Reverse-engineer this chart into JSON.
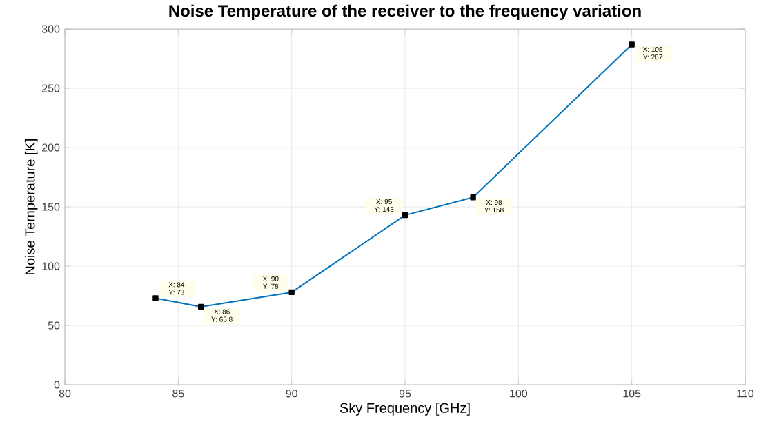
{
  "chart_data": {
    "type": "line",
    "title": "Noise Temperature of the receiver to the frequency variation",
    "xlabel": "Sky Frequency [GHz]",
    "ylabel": "Noise Temperature [K]",
    "x": [
      84,
      86,
      90,
      95,
      98,
      105
    ],
    "series": [
      {
        "color": "#0072bd",
        "values": [
          73,
          65.8,
          78,
          143,
          158,
          287
        ]
      }
    ],
    "marker": "square",
    "grid": true,
    "xlim": [
      80,
      110
    ],
    "xticks": [
      80,
      85,
      90,
      95,
      100,
      105,
      110
    ],
    "ylim": [
      0,
      300
    ],
    "yticks": [
      0,
      50,
      100,
      150,
      200,
      250,
      300
    ],
    "annotations": [
      {
        "text": "X: 84",
        "x": 84,
        "y": 73
      },
      {
        "text": "Y: 73",
        "x": 84,
        "y": 73
      },
      {
        "text": "X: 86",
        "x": 86,
        "y": 65.8
      },
      {
        "text": "Y: 65.8",
        "x": 86,
        "y": 65.8
      },
      {
        "text": "X: 90",
        "x": 90,
        "y": 78
      },
      {
        "text": "Y: 78",
        "x": 90,
        "y": 78
      },
      {
        "text": "X: 95",
        "x": 95,
        "y": 143
      },
      {
        "text": "Y: 143",
        "x": 95,
        "y": 143
      },
      {
        "text": "X: 98",
        "x": 98,
        "y": 158
      },
      {
        "text": "Y: 158",
        "x": 98,
        "y": 158
      },
      {
        "text": "X: 105",
        "x": 105,
        "y": 287
      },
      {
        "text": "Y: 287",
        "x": 105,
        "y": 287
      }
    ]
  }
}
